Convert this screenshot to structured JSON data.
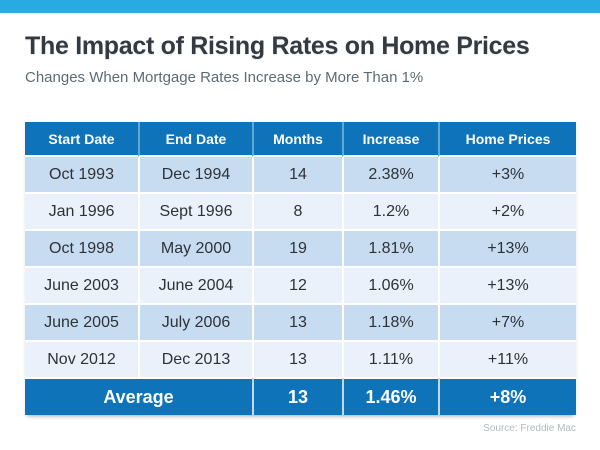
{
  "top_bar": {
    "color": "#29abe2"
  },
  "header": {
    "title": "The Impact of Rising Rates on Home Prices",
    "subtitle": "Changes When Mortgage Rates Increase by More Than 1%"
  },
  "chart_data": {
    "type": "table",
    "title": "The Impact of Rising Rates on Home Prices",
    "subtitle": "Changes When Mortgage Rates Increase by More Than 1%",
    "columns": [
      "Start Date",
      "End Date",
      "Months",
      "Increase",
      "Home Prices"
    ],
    "rows": [
      [
        "Oct 1993",
        "Dec 1994",
        "14",
        "2.38%",
        "+3%"
      ],
      [
        "Jan 1996",
        "Sept 1996",
        "8",
        "1.2%",
        "+2%"
      ],
      [
        "Oct 1998",
        "May 2000",
        "19",
        "1.81%",
        "+13%"
      ],
      [
        "June 2003",
        "June 2004",
        "12",
        "1.06%",
        "+13%"
      ],
      [
        "June 2005",
        "July 2006",
        "13",
        "1.18%",
        "+7%"
      ],
      [
        "Nov 2012",
        "Dec 2013",
        "13",
        "1.11%",
        "+11%"
      ]
    ],
    "average_row": {
      "label": "Average",
      "months": "13",
      "increase": "1.46%",
      "home_prices": "+8%"
    },
    "source": "Source: Freddie Mac"
  },
  "footer": {
    "source": "Source: Freddie Mac"
  },
  "colors": {
    "accent_bar": "#29abe2",
    "table_header_blue": "#0e73b9",
    "row_dark_blue": "#c8dcf1",
    "row_light_blue": "#eaf1fa",
    "header_divider": "#5fa7d4",
    "average_divider": "#bcd9ee",
    "title_text": "#343a41",
    "subtitle_text": "#5c6b74",
    "cell_text": "#2d3237",
    "source_text": "#b5b9bc"
  }
}
